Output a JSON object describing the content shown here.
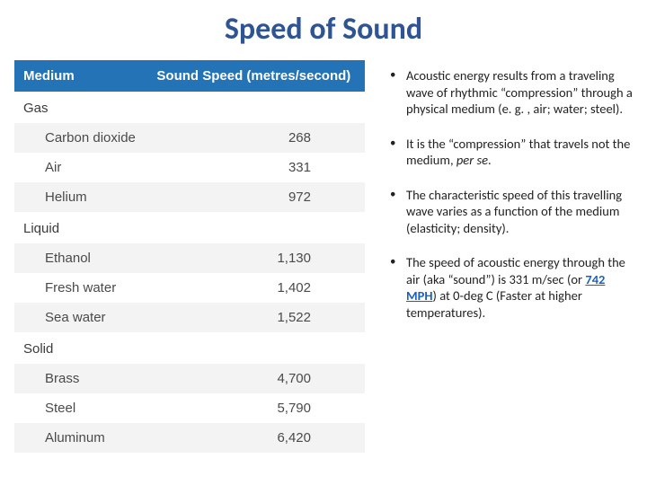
{
  "title": "Speed of Sound",
  "title_color": "#2e5493",
  "title_fontsize": 34,
  "table": {
    "header_bg": "#2373b6",
    "header_fg": "#ffffff",
    "columns": [
      "Medium",
      "Sound Speed (metres/second)"
    ],
    "rows": [
      {
        "type": "category",
        "label": "Gas",
        "value": "",
        "alt": false
      },
      {
        "type": "item",
        "label": "Carbon dioxide",
        "value": "268",
        "alt": true
      },
      {
        "type": "item",
        "label": "Air",
        "value": "331",
        "alt": false
      },
      {
        "type": "item",
        "label": "Helium",
        "value": "972",
        "alt": true
      },
      {
        "type": "category",
        "label": "Liquid",
        "value": "",
        "alt": false
      },
      {
        "type": "item",
        "label": "Ethanol",
        "value": "1,130",
        "alt": true
      },
      {
        "type": "item",
        "label": "Fresh water",
        "value": "1,402",
        "alt": false
      },
      {
        "type": "item",
        "label": "Sea water",
        "value": "1,522",
        "alt": true
      },
      {
        "type": "category",
        "label": "Solid",
        "value": "",
        "alt": false
      },
      {
        "type": "item",
        "label": "Brass",
        "value": "4,700",
        "alt": true
      },
      {
        "type": "item",
        "label": "Steel",
        "value": "5,790",
        "alt": false
      },
      {
        "type": "item",
        "label": "Aluminum",
        "value": "6,420",
        "alt": true
      }
    ]
  },
  "paragraphs": {
    "p1a": "Acoustic energy results from a traveling wave of rhythmic “compression” through a physical medium (e. g. , air; water; steel).",
    "p2a": "It is the “compression” that travels not the medium, ",
    "p2b": "per se",
    "p2c": ".",
    "p3a": "The characteristic speed of this travelling wave varies as a function of the medium (elasticity; density).",
    "p4a": "The speed of acoustic energy through the air (aka “sound”) is 331 m/sec (or ",
    "p4b": "742 MPH",
    "p4c": ") at 0-deg C (Faster at higher temperatures)."
  },
  "body_fontsize": 14.5,
  "body_color": "#222222",
  "link_color": "#1a5fc7"
}
